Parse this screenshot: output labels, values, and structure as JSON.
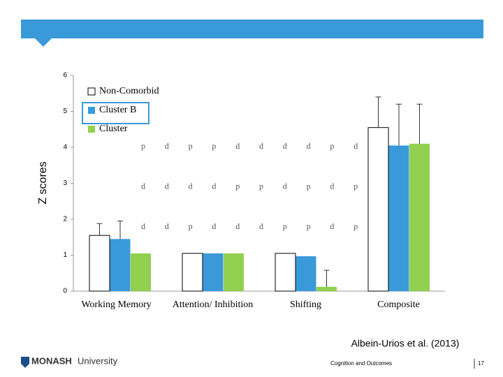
{
  "chart_data": {
    "type": "bar",
    "y_label": "Z scores",
    "categories": [
      "Working Memory",
      "Attention/ Inhibition",
      "Shifting",
      "Composite"
    ],
    "series": [
      {
        "name": "Non-Comorbid",
        "color": "#ffffff",
        "values": [
          1.55,
          1.05,
          1.05,
          4.55
        ],
        "errors": [
          0.33,
          null,
          null,
          0.85
        ]
      },
      {
        "name": "Cluster B",
        "color": "#3a9ad9",
        "values": [
          1.45,
          1.05,
          0.97,
          4.05
        ],
        "errors": [
          0.5,
          null,
          null,
          1.15
        ]
      },
      {
        "name": "Cluster",
        "color": "#92d050",
        "values": [
          1.05,
          1.05,
          0.12,
          4.1
        ],
        "errors": [
          null,
          null,
          0.46,
          1.1
        ]
      }
    ],
    "ylim": [
      0,
      6
    ],
    "yticks": [
      0,
      1,
      2,
      3,
      4,
      5,
      6
    ],
    "legend": "top-left",
    "annotations": [
      [
        "p",
        "d",
        "p",
        "p",
        "d",
        "d",
        "d",
        "d",
        "p",
        "d"
      ],
      [
        "d",
        "d",
        "d",
        "d",
        "p",
        "p",
        "d",
        "p",
        "d",
        "p"
      ],
      [
        "d",
        "d",
        "p",
        "d",
        "d",
        "d",
        "p",
        "p",
        "d",
        "p"
      ]
    ]
  },
  "footer": {
    "citation": "Albein-Urios et al. (2013)",
    "logo": "MONASH",
    "logo_suffix": "University",
    "section": "Cognition and Outcomes",
    "page": "17"
  }
}
